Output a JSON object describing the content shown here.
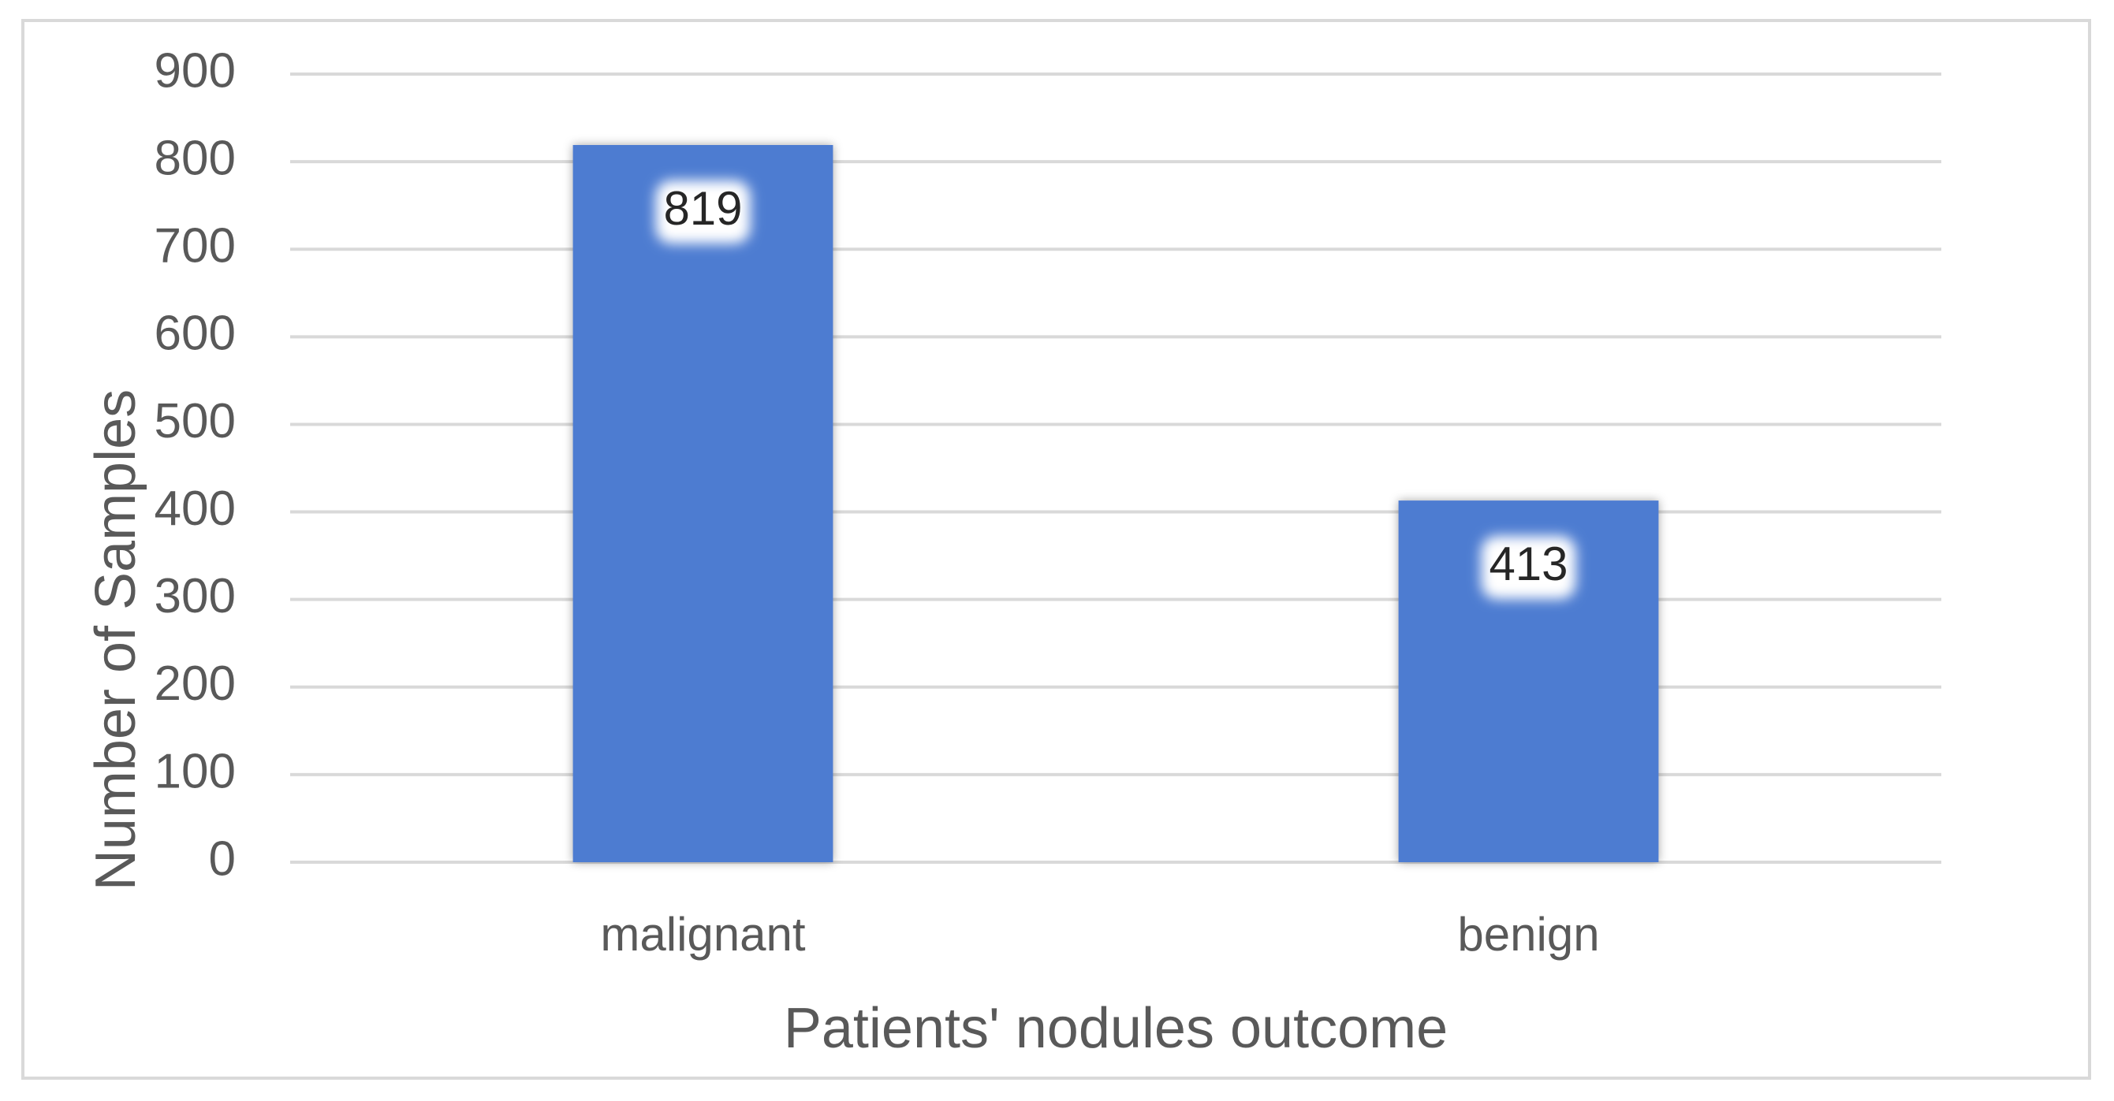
{
  "chart_data": {
    "type": "bar",
    "x_label": "Patients' nodules outcome",
    "y_label": "Number of Samples",
    "categories": [
      "malignant",
      "benign"
    ],
    "values": [
      819,
      413
    ],
    "color": "#4e7bd1",
    "ylim": [
      0,
      900
    ],
    "yticks": [
      0,
      100,
      200,
      300,
      400,
      500,
      600,
      700,
      800,
      900
    ],
    "grid": true
  }
}
